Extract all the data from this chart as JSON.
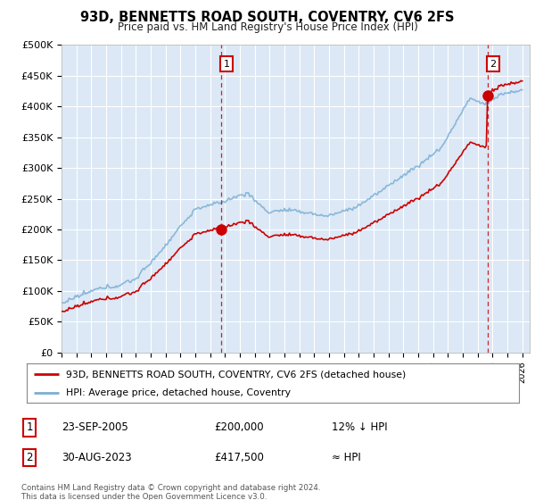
{
  "title": "93D, BENNETTS ROAD SOUTH, COVENTRY, CV6 2FS",
  "subtitle": "Price paid vs. HM Land Registry's House Price Index (HPI)",
  "background_color": "#ffffff",
  "plot_bg_color": "#dce8f5",
  "grid_color": "#ffffff",
  "hpi_color": "#7bafd4",
  "price_color": "#cc0000",
  "vline_color": "#cc0000",
  "sale1_x": 2005.73,
  "sale1_y": 200000,
  "sale2_x": 2023.66,
  "sale2_y": 417500,
  "ylim": [
    0,
    500000
  ],
  "yticks": [
    0,
    50000,
    100000,
    150000,
    200000,
    250000,
    300000,
    350000,
    400000,
    450000,
    500000
  ],
  "ytick_labels": [
    "£0",
    "£50K",
    "£100K",
    "£150K",
    "£200K",
    "£250K",
    "£300K",
    "£350K",
    "£400K",
    "£450K",
    "£500K"
  ],
  "xlim_start": 1995.0,
  "xlim_end": 2026.5,
  "legend_line1": "93D, BENNETTS ROAD SOUTH, COVENTRY, CV6 2FS (detached house)",
  "legend_line2": "HPI: Average price, detached house, Coventry",
  "annotation1_date": "23-SEP-2005",
  "annotation1_price": "£200,000",
  "annotation1_hpi": "12% ↓ HPI",
  "annotation2_date": "30-AUG-2023",
  "annotation2_price": "£417,500",
  "annotation2_hpi": "≈ HPI",
  "footer": "Contains HM Land Registry data © Crown copyright and database right 2024.\nThis data is licensed under the Open Government Licence v3.0."
}
